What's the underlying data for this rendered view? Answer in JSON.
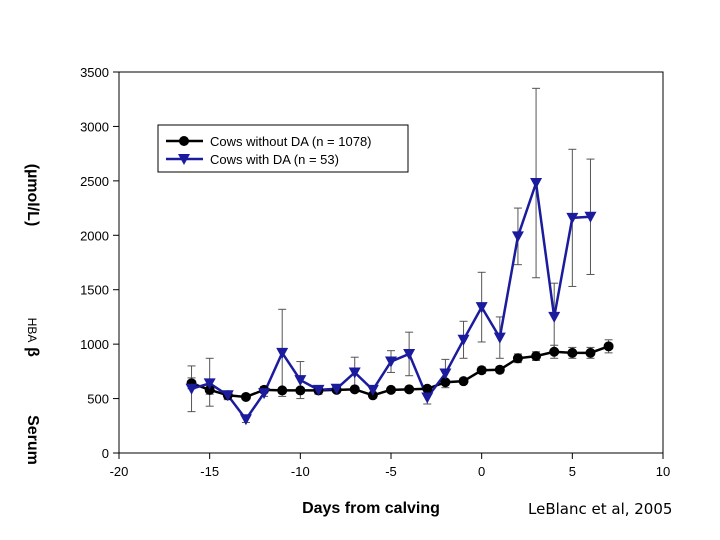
{
  "chart_data": {
    "type": "line",
    "title": "",
    "xlabel": "Days from calving",
    "ylabel_parts": [
      "Serum",
      "β",
      "HBA",
      "(µmol/L)"
    ],
    "xlim": [
      -20,
      10
    ],
    "ylim": [
      0,
      3500
    ],
    "xticks": [
      -20,
      -15,
      -10,
      -5,
      0,
      5,
      10
    ],
    "yticks": [
      0,
      500,
      1000,
      1500,
      2000,
      2500,
      3000,
      3500
    ],
    "series": [
      {
        "name": "Cows without DA (n = 1078)",
        "color": "#000000",
        "marker": "circle",
        "x": [
          -16,
          -15,
          -14,
          -13,
          -12,
          -11,
          -10,
          -9,
          -8,
          -7,
          -6,
          -5,
          -4,
          -3,
          -2,
          -1,
          0,
          1,
          2,
          3,
          4,
          5,
          6,
          7
        ],
        "values": [
          640,
          580,
          530,
          515,
          580,
          575,
          575,
          575,
          580,
          585,
          530,
          580,
          585,
          590,
          650,
          660,
          760,
          765,
          870,
          890,
          930,
          920,
          920,
          980
        ],
        "err_up": [
          50,
          40,
          30,
          20,
          30,
          25,
          25,
          25,
          20,
          20,
          20,
          20,
          20,
          20,
          25,
          25,
          30,
          30,
          40,
          40,
          60,
          50,
          50,
          60
        ],
        "err_down": [
          50,
          40,
          30,
          20,
          30,
          25,
          25,
          25,
          20,
          20,
          20,
          20,
          20,
          20,
          25,
          25,
          30,
          30,
          40,
          40,
          60,
          50,
          50,
          60
        ]
      },
      {
        "name": "Cows with DA (n = 53)",
        "color": "#1b1b9e",
        "marker": "triangle-down",
        "x": [
          -16,
          -15,
          -14,
          -13,
          -12,
          -11,
          -10,
          -9,
          -8,
          -7,
          -6,
          -5,
          -4,
          -3,
          -2,
          -1,
          0,
          1,
          2,
          3,
          4,
          5,
          6
        ],
        "values": [
          590,
          640,
          530,
          310,
          550,
          920,
          670,
          580,
          590,
          740,
          580,
          840,
          910,
          510,
          730,
          1040,
          1340,
          1060,
          1990,
          2480,
          1250,
          2160,
          2170
        ],
        "err_up": [
          210,
          230,
          40,
          30,
          30,
          400,
          170,
          40,
          30,
          140,
          30,
          100,
          200,
          60,
          130,
          170,
          320,
          190,
          260,
          870,
          310,
          630,
          530
        ],
        "err_down": [
          210,
          210,
          40,
          30,
          30,
          400,
          170,
          40,
          30,
          140,
          30,
          100,
          200,
          60,
          130,
          170,
          320,
          190,
          260,
          870,
          310,
          630,
          530
        ]
      }
    ]
  },
  "legend": {
    "entries": [
      "Cows without DA (n = 1078)",
      "Cows with DA (n = 53)"
    ]
  },
  "citation": "LeBlanc et al, 2005"
}
